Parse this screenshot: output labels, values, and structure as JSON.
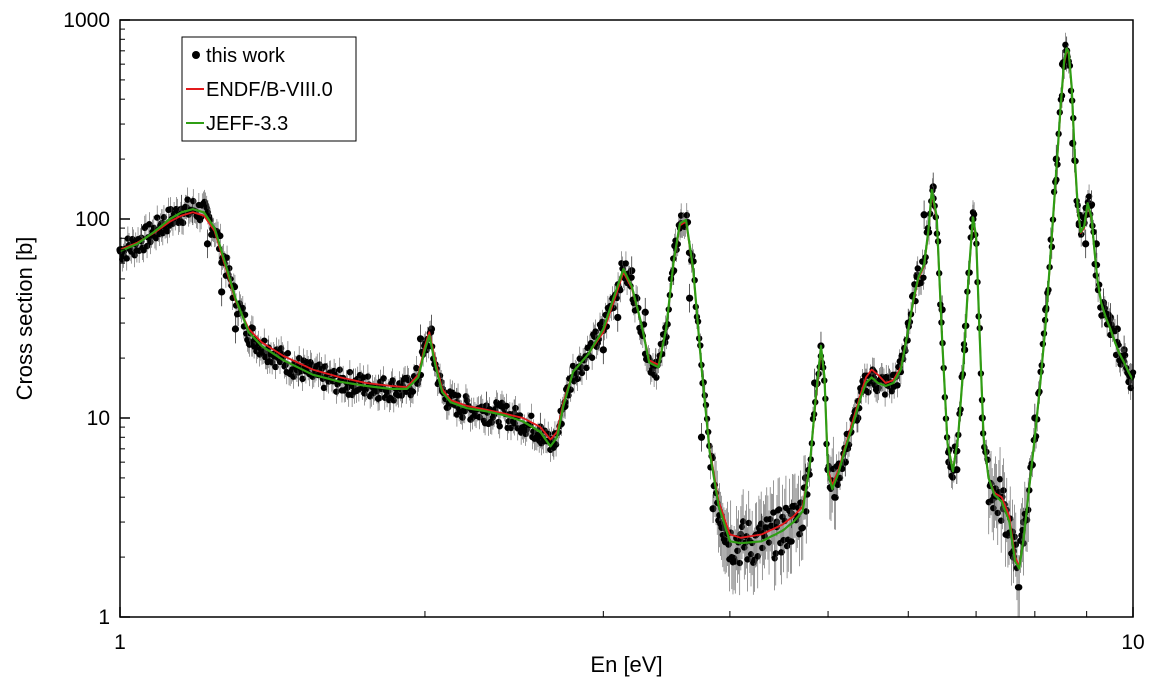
{
  "chart_data": {
    "type": "scatter",
    "xlabel": "En [eV]",
    "ylabel": "Cross section [b]",
    "xscale": "log",
    "yscale": "log",
    "xlim": [
      1,
      10
    ],
    "ylim": [
      1,
      1000
    ],
    "xticks": [
      "1",
      "10"
    ],
    "yticks": [
      "1",
      "10",
      "100",
      "1000"
    ],
    "legend_position": "top-left",
    "legend": [
      "this work",
      "ENDF/B-VIII.0",
      "JEFF-3.3"
    ],
    "series": [
      {
        "name": "this work",
        "kind": "points",
        "color": "#000000",
        "x": [
          1.0,
          1.05,
          1.1,
          1.15,
          1.18,
          1.22,
          1.26,
          1.3,
          1.35,
          1.4,
          1.5,
          1.6,
          1.7,
          1.8,
          1.9,
          1.98,
          2.03,
          2.08,
          2.15,
          2.3,
          2.45,
          2.6,
          2.68,
          2.75,
          2.85,
          3.0,
          3.1,
          3.2,
          3.3,
          3.38,
          3.45,
          3.52,
          3.58,
          3.65,
          3.75,
          3.85,
          3.95,
          4.1,
          4.3,
          4.45,
          4.6,
          4.75,
          4.85,
          4.92,
          5.0,
          5.1,
          5.2,
          5.35,
          5.45,
          5.55,
          5.65,
          5.75,
          5.88,
          6.0,
          6.12,
          6.22,
          6.35,
          6.48,
          6.58,
          6.7,
          6.82,
          6.95,
          7.1,
          7.3,
          7.45,
          7.62,
          7.8,
          8.0,
          8.2,
          8.4,
          8.52,
          8.6,
          8.72,
          8.85,
          8.98,
          9.1,
          9.2,
          9.35,
          9.5,
          9.65,
          9.8,
          9.95
        ],
        "y": [
          70,
          80,
          95,
          112,
          110,
          75,
          43,
          28,
          24,
          21,
          17,
          16,
          15,
          14,
          14,
          25,
          28,
          14,
          12,
          11.5,
          10.5,
          9,
          7.5,
          12,
          18,
          22,
          32,
          55,
          34,
          19,
          24,
          55,
          95,
          40,
          8,
          3.5,
          2.8,
          2.6,
          2.8,
          3.0,
          3.3,
          5,
          15,
          23,
          5.5,
          4.8,
          6,
          10,
          15,
          17,
          16,
          15,
          18,
          30,
          52,
          105,
          145,
          35,
          6,
          5.5,
          22,
          100,
          10,
          4,
          3.5,
          2,
          3,
          10,
          35,
          200,
          600,
          700,
          240,
          95,
          75,
          118,
          75,
          38,
          32,
          28,
          22,
          16
        ]
      },
      {
        "name": "ENDF/B-VIII.0",
        "kind": "line",
        "color": "#e31a1c",
        "x": [
          1.0,
          1.04,
          1.08,
          1.12,
          1.15,
          1.18,
          1.21,
          1.24,
          1.27,
          1.3,
          1.34,
          1.38,
          1.45,
          1.55,
          1.65,
          1.75,
          1.85,
          1.92,
          1.97,
          2.0,
          2.02,
          2.05,
          2.08,
          2.12,
          2.2,
          2.3,
          2.4,
          2.5,
          2.6,
          2.66,
          2.7,
          2.74,
          2.8,
          2.9,
          3.0,
          3.08,
          3.14,
          3.2,
          3.27,
          3.33,
          3.4,
          3.46,
          3.52,
          3.57,
          3.62,
          3.68,
          3.75,
          3.82,
          3.9,
          4.0,
          4.1,
          4.3,
          4.5,
          4.62,
          4.72,
          4.8,
          4.86,
          4.92,
          4.96,
          5.0,
          5.05,
          5.12,
          5.2,
          5.3,
          5.38,
          5.45,
          5.52,
          5.6,
          5.7,
          5.8,
          5.9,
          6.0,
          6.08,
          6.14,
          6.22,
          6.28,
          6.33,
          6.4,
          6.48,
          6.56,
          6.64,
          6.72,
          6.8,
          6.88,
          6.95,
          7.0,
          7.05,
          7.12,
          7.2,
          7.3,
          7.42,
          7.55,
          7.65,
          7.72,
          7.8,
          7.9,
          8.0,
          8.1,
          8.2,
          8.3,
          8.4,
          8.48,
          8.55,
          8.6,
          8.64,
          8.7,
          8.76,
          8.82,
          8.88,
          8.95,
          9.02,
          9.1,
          9.16,
          9.22,
          9.3,
          9.4,
          9.5,
          9.6,
          9.7,
          9.8,
          9.9,
          10.0
        ],
        "y": [
          70,
          76,
          85,
          97,
          104,
          108,
          104,
          87,
          58,
          39,
          28,
          24,
          20.5,
          17.5,
          16,
          15,
          14.5,
          14.3,
          16.5,
          23,
          27,
          19,
          14,
          12.3,
          11.5,
          11,
          10.5,
          10,
          9,
          7.8,
          8.5,
          12,
          17,
          21,
          27,
          40,
          54,
          45,
          30,
          19.5,
          18.5,
          28,
          60,
          93,
          97,
          55,
          18,
          7,
          3.8,
          2.6,
          2.5,
          2.6,
          2.9,
          3.2,
          3.6,
          6,
          12,
          22,
          16,
          5.5,
          4.6,
          5.5,
          7.2,
          10,
          13,
          16,
          17.5,
          16.5,
          15,
          15.5,
          18,
          28,
          40,
          50,
          58,
          85,
          135,
          100,
          25,
          7.5,
          5.5,
          8,
          18,
          50,
          100,
          80,
          30,
          8,
          5,
          4.2,
          4,
          3.2,
          2,
          1.8,
          2.5,
          4.5,
          8,
          15,
          30,
          70,
          170,
          350,
          600,
          700,
          680,
          450,
          200,
          110,
          85,
          90,
          118,
          100,
          70,
          50,
          38,
          32,
          28,
          24,
          21,
          19,
          17,
          15.5
        ]
      },
      {
        "name": "JEFF-3.3",
        "kind": "line",
        "color": "#2f9e14",
        "x": [
          1.0,
          1.04,
          1.08,
          1.12,
          1.15,
          1.18,
          1.21,
          1.24,
          1.27,
          1.3,
          1.34,
          1.38,
          1.45,
          1.55,
          1.65,
          1.75,
          1.85,
          1.92,
          1.97,
          2.0,
          2.02,
          2.05,
          2.08,
          2.12,
          2.2,
          2.3,
          2.4,
          2.5,
          2.6,
          2.66,
          2.7,
          2.74,
          2.8,
          2.9,
          3.0,
          3.08,
          3.14,
          3.2,
          3.27,
          3.33,
          3.4,
          3.46,
          3.52,
          3.57,
          3.62,
          3.68,
          3.75,
          3.82,
          3.9,
          4.0,
          4.1,
          4.3,
          4.5,
          4.62,
          4.72,
          4.8,
          4.86,
          4.92,
          4.96,
          5.0,
          5.05,
          5.12,
          5.2,
          5.3,
          5.38,
          5.45,
          5.52,
          5.6,
          5.7,
          5.8,
          5.9,
          6.0,
          6.08,
          6.14,
          6.22,
          6.28,
          6.33,
          6.4,
          6.48,
          6.56,
          6.64,
          6.72,
          6.8,
          6.88,
          6.95,
          7.0,
          7.05,
          7.12,
          7.2,
          7.3,
          7.42,
          7.55,
          7.65,
          7.72,
          7.8,
          7.9,
          8.0,
          8.1,
          8.2,
          8.3,
          8.4,
          8.48,
          8.55,
          8.6,
          8.64,
          8.7,
          8.76,
          8.82,
          8.88,
          8.95,
          9.02,
          9.1,
          9.16,
          9.22,
          9.3,
          9.4,
          9.5,
          9.6,
          9.7,
          9.8,
          9.9,
          10.0
        ],
        "y": [
          69,
          75,
          86,
          100,
          108,
          112,
          108,
          90,
          60,
          40,
          27,
          23,
          19.5,
          16.5,
          15.2,
          14.5,
          14,
          14,
          16,
          22,
          26,
          18,
          13.5,
          12,
          11.2,
          10.8,
          10.3,
          9.6,
          8.5,
          7.2,
          8,
          11.5,
          17,
          21,
          28,
          42,
          56,
          46,
          30,
          19,
          18,
          28,
          61,
          95,
          99,
          56,
          18,
          6.8,
          3.6,
          2.4,
          2.35,
          2.4,
          2.7,
          3.0,
          3.4,
          6,
          12.5,
          23,
          16,
          5.2,
          4.4,
          5.3,
          7,
          9.5,
          12.5,
          15,
          16,
          15,
          14.5,
          15,
          17.5,
          28,
          41,
          51,
          59,
          87,
          140,
          103,
          25,
          7.5,
          5.4,
          8,
          18,
          51,
          102,
          82,
          30,
          8,
          5,
          4.1,
          3.8,
          3.0,
          1.9,
          1.75,
          2.5,
          4.5,
          8,
          15,
          30,
          72,
          175,
          360,
          620,
          720,
          690,
          460,
          205,
          112,
          86,
          92,
          120,
          102,
          70,
          50,
          38,
          32,
          28,
          24,
          21,
          19,
          17,
          15.5
        ]
      }
    ]
  }
}
